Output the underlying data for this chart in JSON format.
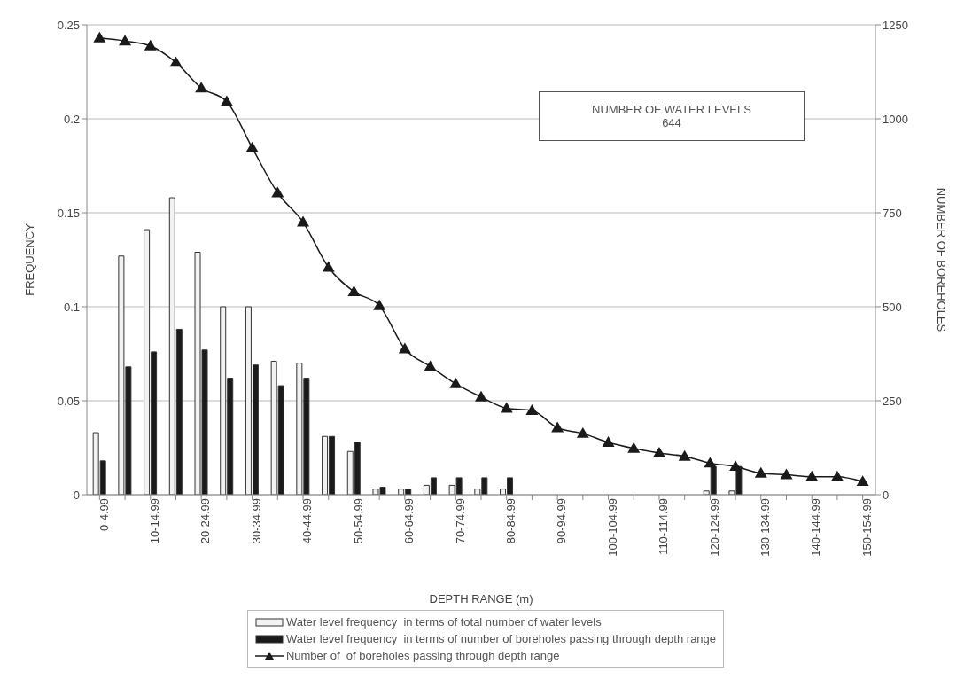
{
  "chart_data": {
    "type": "bar",
    "xlabel": "DEPTH RANGE (m)",
    "ylabel": "FREQUENCY",
    "y2label": "NUMBER OF BOREHOLES",
    "categories": [
      "0-4.99",
      null,
      "10-14.99",
      null,
      "20-24.99",
      null,
      "30-34.99",
      null,
      "40-44.99",
      null,
      "50-54.99",
      null,
      "60-64.99",
      null,
      "70-74.99",
      null,
      "80-84.99",
      null,
      "90-94.99",
      null,
      "100-104.99",
      null,
      "110-114.99",
      null,
      "120-124.99",
      null,
      "130-134.99",
      null,
      "140-144.99",
      null,
      "150-154.99"
    ],
    "series": [
      {
        "name": "Water level frequency  in terms of total number of water levels",
        "color": "#f2f2f2",
        "values": [
          0.033,
          0.127,
          0.141,
          0.158,
          0.129,
          0.1,
          0.1,
          0.071,
          0.07,
          0.031,
          0.023,
          0.003,
          0.003,
          0.005,
          0.005,
          0.003,
          0.003,
          0,
          0,
          0,
          0,
          0,
          0,
          0,
          0.002,
          0.002,
          0,
          0,
          0,
          0,
          0
        ]
      },
      {
        "name": "Water level frequency  in terms of number of boreholes passing through depth range",
        "color": "#1a1a1a",
        "values": [
          0.018,
          0.068,
          0.076,
          0.088,
          0.077,
          0.062,
          0.069,
          0.058,
          0.062,
          0.031,
          0.028,
          0.004,
          0.003,
          0.009,
          0.009,
          0.009,
          0.009,
          0,
          0,
          0,
          0,
          0,
          0,
          0,
          0.015,
          0.015,
          0,
          0,
          0,
          0,
          0
        ]
      },
      {
        "name": "Number of  of boreholes passing through depth range",
        "type": "line",
        "axis": "y2",
        "color": "#1a1a1a",
        "values": [
          1215,
          1207,
          1194,
          1150,
          1082,
          1046,
          923,
          803,
          725,
          605,
          540,
          503,
          388,
          341,
          295,
          260,
          230,
          224,
          178,
          163,
          139,
          123,
          111,
          102,
          84,
          75,
          57,
          53,
          48,
          48,
          35
        ]
      }
    ],
    "ylim": [
      0,
      0.25
    ],
    "yticks": [
      0,
      0.05,
      0.1,
      0.15,
      0.2,
      0.25
    ],
    "y2lim": [
      0,
      1250
    ],
    "y2ticks": [
      0,
      250,
      500,
      750,
      1000,
      1250
    ],
    "grid": "y",
    "legend": "bottom",
    "marker": "triangle",
    "line_style": "solid",
    "annotations": [
      "NUMBER OF WATER LEVELS\n644"
    ]
  }
}
